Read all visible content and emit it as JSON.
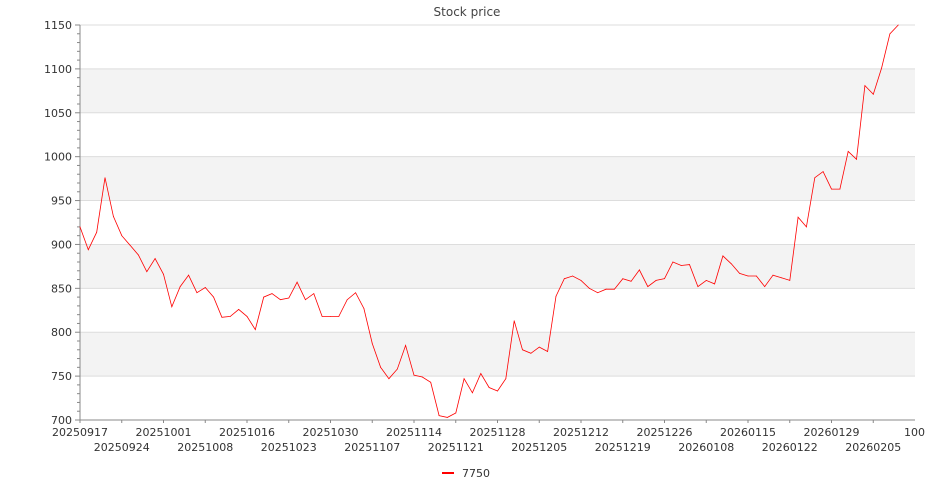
{
  "chart_data": {
    "type": "line",
    "title": "Stock price",
    "xlabel": "",
    "ylabel": "",
    "ylim": [
      700,
      1150
    ],
    "yticks": [
      700,
      750,
      800,
      850,
      900,
      950,
      1000,
      1050,
      1100,
      1150
    ],
    "grid": true,
    "band_color": "#f3f3f3",
    "legend_position": "bottom-center",
    "x_tick_labels": [
      {
        "index": 0,
        "label": "20250917"
      },
      {
        "index": 5,
        "label": "20250924"
      },
      {
        "index": 10,
        "label": "20251001"
      },
      {
        "index": 15,
        "label": "20251008"
      },
      {
        "index": 20,
        "label": "20251016"
      },
      {
        "index": 25,
        "label": "20251023"
      },
      {
        "index": 30,
        "label": "20251030"
      },
      {
        "index": 35,
        "label": "20251107"
      },
      {
        "index": 40,
        "label": "20251114"
      },
      {
        "index": 45,
        "label": "20251121"
      },
      {
        "index": 50,
        "label": "20251128"
      },
      {
        "index": 55,
        "label": "20251205"
      },
      {
        "index": 60,
        "label": "20251212"
      },
      {
        "index": 65,
        "label": "20251219"
      },
      {
        "index": 70,
        "label": "20251226"
      },
      {
        "index": 75,
        "label": "20260108"
      },
      {
        "index": 80,
        "label": "20260115"
      },
      {
        "index": 85,
        "label": "20260122"
      },
      {
        "index": 90,
        "label": "20260129"
      },
      {
        "index": 95,
        "label": "20260205"
      },
      {
        "index": 100,
        "label": "100"
      }
    ],
    "series": [
      {
        "name": "7750",
        "color": "#ff0000",
        "values": [
          920,
          894,
          914,
          976,
          932,
          910,
          899,
          888,
          869,
          884,
          866,
          829,
          852,
          865,
          845,
          851,
          840,
          817,
          818,
          826,
          818,
          803,
          840,
          844,
          837,
          839,
          857,
          837,
          844,
          818,
          818,
          818,
          837,
          845,
          827,
          787,
          760,
          747,
          758,
          785,
          751,
          749,
          743,
          705,
          703,
          708,
          747,
          731,
          753,
          737,
          733,
          747,
          813,
          780,
          776,
          783,
          778,
          841,
          861,
          864,
          859,
          850,
          845,
          849,
          849,
          861,
          858,
          871,
          852,
          859,
          861,
          880,
          876,
          877,
          852,
          859,
          855,
          887,
          878,
          867,
          864,
          864,
          852,
          865,
          862,
          859,
          931,
          920,
          976,
          983,
          963,
          963,
          1006,
          997,
          1081,
          1071,
          1101,
          1140,
          1150
        ]
      }
    ]
  }
}
